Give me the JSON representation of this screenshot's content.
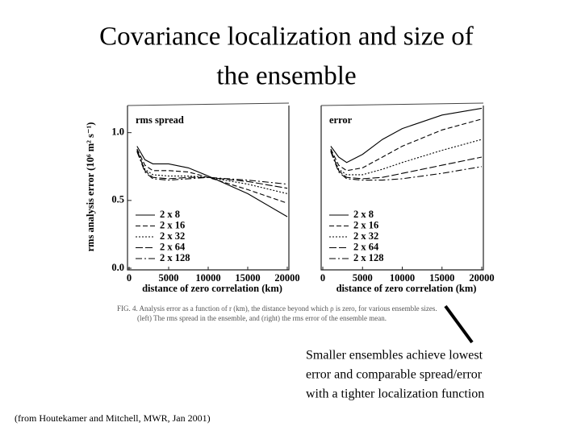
{
  "title_lines": [
    "Covariance localization and size of",
    "the ensemble"
  ],
  "caption_lines": [
    "FIG. 4. Analysis error as a function of r (km), the distance beyond which ρ is zero, for various ensemble sizes.",
    "(left) The rms spread in the ensemble, and (right) the rms error of the ensemble mean."
  ],
  "annotation_lines": [
    "Smaller ensembles achieve lowest",
    "error and comparable spread/error",
    "with a tighter localization function"
  ],
  "source": "(from Houtekamer and Mitchell, MWR, Jan 2001)",
  "chart_data": [
    {
      "type": "line",
      "title": "rms spread",
      "xlabel": "distance of zero correlation (km)",
      "ylabel": "rms analysis error (10⁶ m² s⁻¹)",
      "x": [
        1000,
        2000,
        3000,
        5000,
        7500,
        10000,
        15000,
        20000
      ],
      "xlim": [
        0,
        20000
      ],
      "xticks": [
        0,
        5000,
        10000,
        15000,
        20000
      ],
      "ylim": [
        0,
        1.2
      ],
      "yticks": [
        {
          "value": 0,
          "label": "0.0"
        },
        0.5,
        {
          "value": 1,
          "label": "1.0"
        }
      ],
      "legend": "lower left",
      "series": [
        {
          "name": "2 x 8",
          "color": "#000",
          "dash": "none",
          "values": [
            0.9,
            0.8,
            0.77,
            0.77,
            0.74,
            0.68,
            0.55,
            0.38
          ]
        },
        {
          "name": "2 x 16",
          "color": "#000",
          "dash": "6,3",
          "values": [
            0.88,
            0.76,
            0.72,
            0.72,
            0.71,
            0.67,
            0.58,
            0.48
          ]
        },
        {
          "name": "2 x 32",
          "color": "#000",
          "dash": "2,2",
          "values": [
            0.87,
            0.73,
            0.69,
            0.68,
            0.68,
            0.67,
            0.62,
            0.55
          ]
        },
        {
          "name": "2 x 64",
          "color": "#000",
          "dash": "9,3",
          "values": [
            0.87,
            0.72,
            0.67,
            0.66,
            0.67,
            0.67,
            0.64,
            0.59
          ]
        },
        {
          "name": "2 x 128",
          "color": "#000",
          "dash": "8,3,2,3",
          "values": [
            0.86,
            0.71,
            0.66,
            0.65,
            0.66,
            0.67,
            0.65,
            0.62
          ]
        }
      ]
    },
    {
      "type": "line",
      "title": "error",
      "xlabel": "distance of zero correlation (km)",
      "x": [
        1000,
        2000,
        3000,
        5000,
        7500,
        10000,
        15000,
        20000
      ],
      "xlim": [
        0,
        20000
      ],
      "xticks": [
        0,
        5000,
        10000,
        15000,
        20000
      ],
      "ylim": [
        0,
        1.2
      ],
      "legend": "lower left",
      "series": [
        {
          "name": "2 x 8",
          "color": "#000",
          "dash": "none",
          "values": [
            0.9,
            0.82,
            0.78,
            0.84,
            0.95,
            1.03,
            1.13,
            1.18
          ]
        },
        {
          "name": "2 x 16",
          "color": "#000",
          "dash": "6,3",
          "values": [
            0.88,
            0.76,
            0.72,
            0.74,
            0.82,
            0.9,
            1.02,
            1.1
          ]
        },
        {
          "name": "2 x 32",
          "color": "#000",
          "dash": "2,2",
          "values": [
            0.87,
            0.73,
            0.69,
            0.69,
            0.73,
            0.78,
            0.87,
            0.95
          ]
        },
        {
          "name": "2 x 64",
          "color": "#000",
          "dash": "9,3",
          "values": [
            0.87,
            0.72,
            0.67,
            0.66,
            0.67,
            0.7,
            0.76,
            0.82
          ]
        },
        {
          "name": "2 x 128",
          "color": "#000",
          "dash": "8,3,2,3",
          "values": [
            0.86,
            0.71,
            0.66,
            0.65,
            0.65,
            0.66,
            0.7,
            0.75
          ]
        }
      ]
    }
  ]
}
